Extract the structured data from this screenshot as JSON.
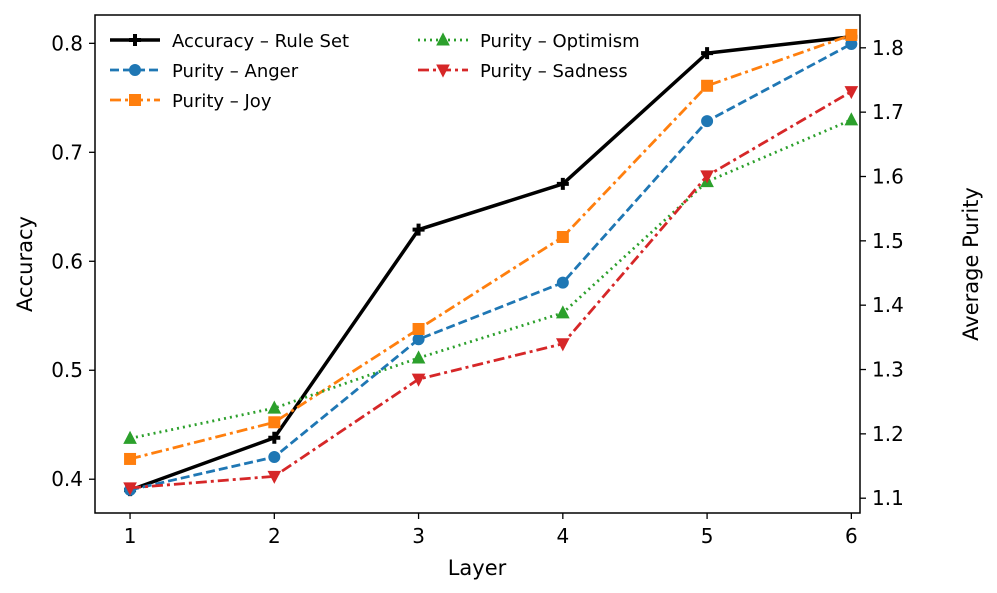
{
  "chart_data": {
    "type": "line",
    "title": "",
    "xlabel": "Layer",
    "ylabel": "Accuracy",
    "y2label": "Average Purity",
    "x": [
      1,
      2,
      3,
      4,
      5,
      6
    ],
    "xticks": [
      "1",
      "2",
      "3",
      "4",
      "5",
      "6"
    ],
    "xlim": [
      0.757,
      6.06
    ],
    "ylim": [
      0.369,
      0.826
    ],
    "y2lim": [
      1.077,
      1.851
    ],
    "yticks": [
      "0.4",
      "0.5",
      "0.6",
      "0.7",
      "0.8"
    ],
    "y2ticks": [
      "1.1",
      "1.2",
      "1.3",
      "1.4",
      "1.5",
      "1.6",
      "1.7",
      "1.8"
    ],
    "grid": false,
    "legend_position": "top-left",
    "series": [
      {
        "name": "Accuracy – Rule Set",
        "axis": "left",
        "color": "#000000",
        "dash": "solid",
        "marker": "plus",
        "values": [
          0.39,
          0.438,
          0.629,
          0.671,
          0.791,
          0.806
        ]
      },
      {
        "name": "Purity – Anger",
        "axis": "right",
        "color": "#1f77b4",
        "dash": "dashed",
        "marker": "circle",
        "values": [
          1.113,
          1.164,
          1.347,
          1.435,
          1.686,
          1.806
        ]
      },
      {
        "name": "Purity – Joy",
        "axis": "right",
        "color": "#ff7f0e",
        "dash": "dashdot",
        "marker": "square",
        "values": [
          1.161,
          1.218,
          1.363,
          1.506,
          1.741,
          1.82
        ]
      },
      {
        "name": "Purity – Optimism",
        "axis": "right",
        "color": "#2ca02c",
        "dash": "dotted",
        "marker": "triangle-up",
        "values": [
          1.193,
          1.24,
          1.318,
          1.388,
          1.592,
          1.688
        ]
      },
      {
        "name": "Purity – Sadness",
        "axis": "right",
        "color": "#d62728",
        "dash": "dashdot",
        "marker": "triangle-down",
        "values": [
          1.116,
          1.134,
          1.285,
          1.34,
          1.601,
          1.732
        ]
      }
    ]
  }
}
